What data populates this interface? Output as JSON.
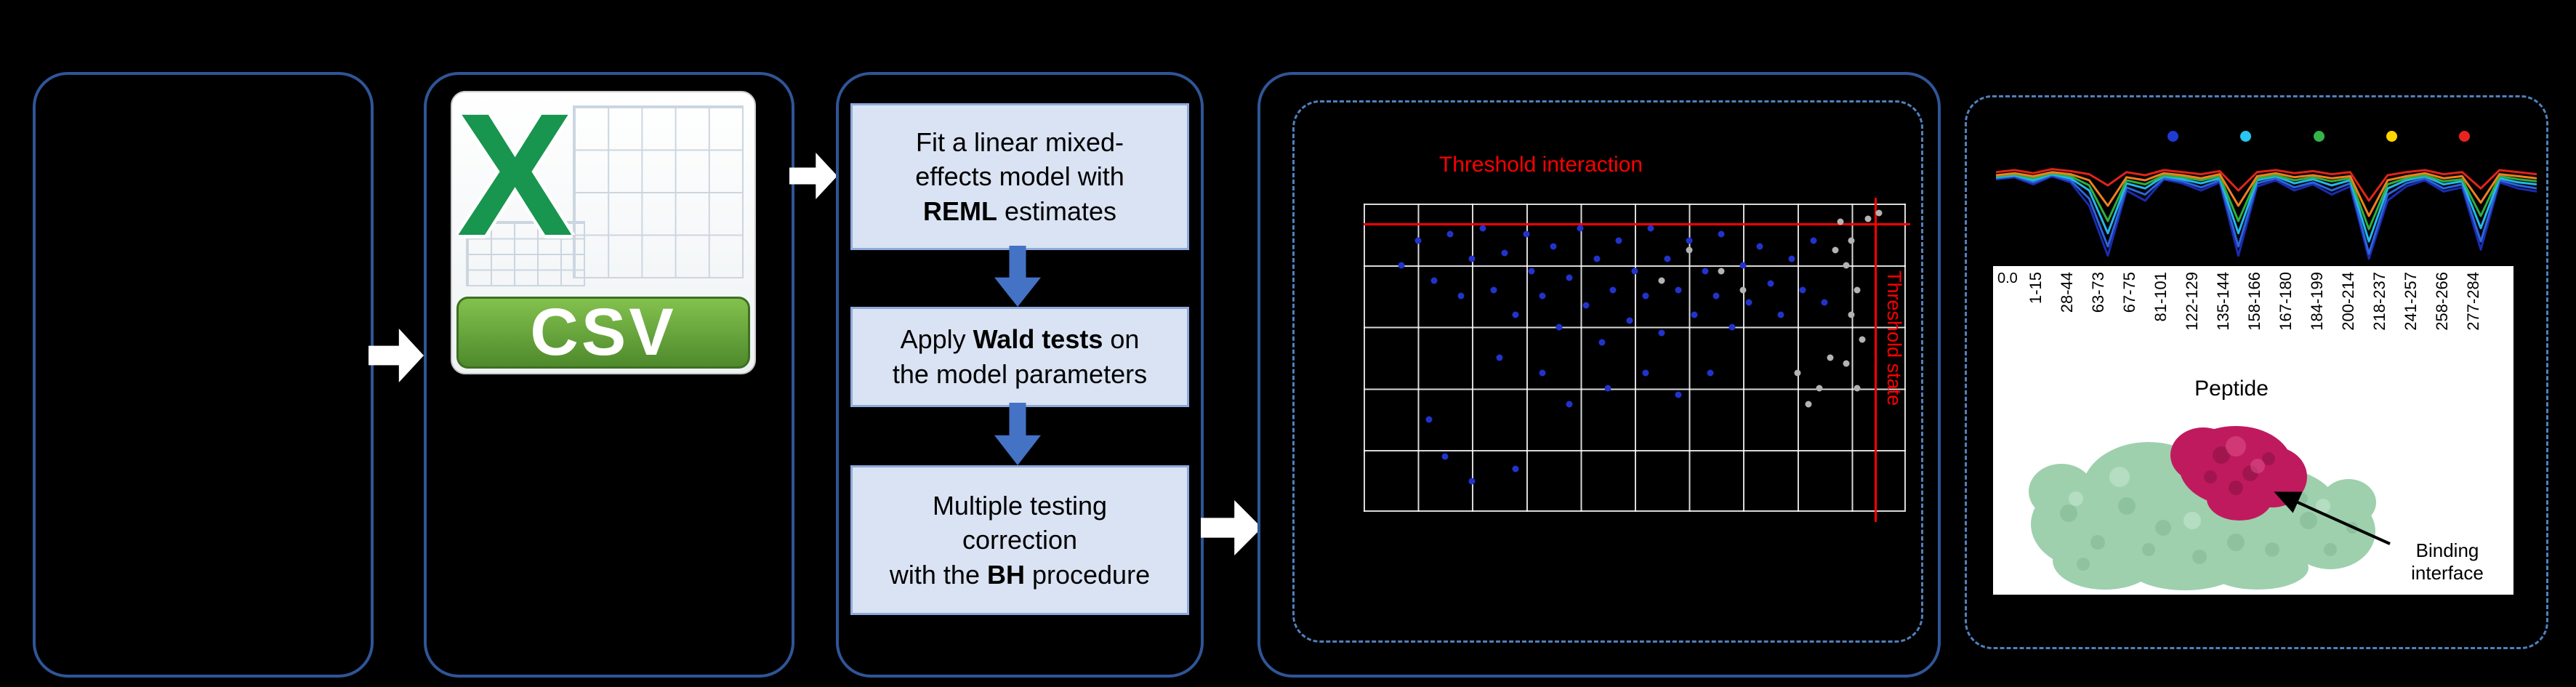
{
  "colors": {
    "panel_border": "#2f5597",
    "dashed_border": "#4f81bd",
    "flow_box_fill": "#dae3f3",
    "flow_box_border": "#8eaadb",
    "white_arrow": "#ffffff",
    "blue_arrow": "#4472c4",
    "threshold_red": "#ff0000",
    "csv_x_green": "#18954e",
    "csv_banner_green": "#5a9e2f"
  },
  "flow": {
    "csv": {
      "x": "X",
      "label": "CSV"
    },
    "steps": [
      {
        "lines": [
          [
            {
              "t": "Fit a linear mixed-"
            }
          ],
          [
            {
              "t": "effects model with"
            }
          ],
          [
            {
              "t": "REML",
              "b": true
            },
            {
              "t": " estimates"
            }
          ]
        ]
      },
      {
        "lines": [
          [
            {
              "t": "Apply "
            },
            {
              "t": "Wald tests",
              "b": true
            },
            {
              "t": " on"
            }
          ],
          [
            {
              "t": "the model parameters"
            }
          ]
        ]
      },
      {
        "lines": [
          [
            {
              "t": "Multiple testing"
            }
          ],
          [
            {
              "t": "correction"
            }
          ],
          [
            {
              "t": "with the "
            },
            {
              "t": "BH",
              "b": true
            },
            {
              "t": " procedure"
            }
          ]
        ]
      }
    ]
  },
  "scatter": {
    "threshold_labels": {
      "horizontal": "Threshold interaction",
      "vertical": "Threshold state"
    },
    "colors": {
      "significant": "#2233cc",
      "not_significant": "#b3b3b3",
      "threshold": "#ff0000"
    },
    "blue_points": [
      [
        0.07,
        0.2
      ],
      [
        0.1,
        0.12
      ],
      [
        0.13,
        0.25
      ],
      [
        0.16,
        0.1
      ],
      [
        0.18,
        0.3
      ],
      [
        0.2,
        0.18
      ],
      [
        0.22,
        0.08
      ],
      [
        0.24,
        0.28
      ],
      [
        0.26,
        0.16
      ],
      [
        0.28,
        0.36
      ],
      [
        0.3,
        0.1
      ],
      [
        0.31,
        0.22
      ],
      [
        0.33,
        0.3
      ],
      [
        0.35,
        0.14
      ],
      [
        0.36,
        0.4
      ],
      [
        0.38,
        0.24
      ],
      [
        0.4,
        0.08
      ],
      [
        0.41,
        0.33
      ],
      [
        0.43,
        0.18
      ],
      [
        0.44,
        0.45
      ],
      [
        0.46,
        0.28
      ],
      [
        0.47,
        0.12
      ],
      [
        0.49,
        0.38
      ],
      [
        0.5,
        0.22
      ],
      [
        0.52,
        0.3
      ],
      [
        0.53,
        0.08
      ],
      [
        0.55,
        0.42
      ],
      [
        0.56,
        0.18
      ],
      [
        0.58,
        0.28
      ],
      [
        0.6,
        0.12
      ],
      [
        0.61,
        0.36
      ],
      [
        0.63,
        0.22
      ],
      [
        0.65,
        0.3
      ],
      [
        0.66,
        0.1
      ],
      [
        0.68,
        0.4
      ],
      [
        0.7,
        0.2
      ],
      [
        0.71,
        0.32
      ],
      [
        0.73,
        0.14
      ],
      [
        0.75,
        0.26
      ],
      [
        0.77,
        0.36
      ],
      [
        0.79,
        0.18
      ],
      [
        0.81,
        0.28
      ],
      [
        0.83,
        0.12
      ],
      [
        0.85,
        0.32
      ],
      [
        0.33,
        0.55
      ],
      [
        0.45,
        0.6
      ],
      [
        0.52,
        0.55
      ],
      [
        0.38,
        0.65
      ],
      [
        0.25,
        0.5
      ],
      [
        0.15,
        0.82
      ],
      [
        0.2,
        0.9
      ],
      [
        0.28,
        0.86
      ],
      [
        0.12,
        0.7
      ],
      [
        0.58,
        0.62
      ],
      [
        0.64,
        0.55
      ]
    ],
    "gray_points": [
      [
        0.88,
        0.06
      ],
      [
        0.9,
        0.12
      ],
      [
        0.89,
        0.2
      ],
      [
        0.91,
        0.28
      ],
      [
        0.9,
        0.36
      ],
      [
        0.92,
        0.44
      ],
      [
        0.89,
        0.52
      ],
      [
        0.91,
        0.6
      ],
      [
        0.6,
        0.15
      ],
      [
        0.66,
        0.22
      ],
      [
        0.7,
        0.28
      ],
      [
        0.55,
        0.25
      ],
      [
        0.93,
        0.05
      ],
      [
        0.87,
        0.15
      ],
      [
        0.95,
        0.03
      ],
      [
        0.8,
        0.55
      ],
      [
        0.84,
        0.6
      ],
      [
        0.82,
        0.65
      ],
      [
        0.86,
        0.5
      ]
    ]
  },
  "uptake": {
    "y_tick": "0.0",
    "legend_colors": [
      "#1f3bd4",
      "#29c5f0",
      "#35b44a",
      "#ffd400",
      "#e8231f"
    ],
    "series": [
      {
        "color": "#1b2bb0",
        "values": [
          0.81,
          0.83,
          0.76,
          0.84,
          0.78,
          0.55,
          0.06,
          0.7,
          0.6,
          0.81,
          0.77,
          0.7,
          0.78,
          0.06,
          0.74,
          0.8,
          0.7,
          0.76,
          0.66,
          0.74,
          0.03,
          0.6,
          0.74,
          0.8,
          0.69,
          0.73,
          0.12,
          0.78,
          0.72,
          0.69
        ]
      },
      {
        "color": "#2c64d8",
        "values": [
          0.82,
          0.84,
          0.78,
          0.85,
          0.8,
          0.62,
          0.15,
          0.73,
          0.66,
          0.82,
          0.79,
          0.73,
          0.8,
          0.15,
          0.77,
          0.82,
          0.73,
          0.78,
          0.7,
          0.77,
          0.08,
          0.66,
          0.77,
          0.82,
          0.72,
          0.76,
          0.2,
          0.8,
          0.75,
          0.72
        ]
      },
      {
        "color": "#25b8e8",
        "values": [
          0.83,
          0.85,
          0.8,
          0.86,
          0.82,
          0.7,
          0.28,
          0.77,
          0.72,
          0.84,
          0.81,
          0.77,
          0.82,
          0.28,
          0.8,
          0.84,
          0.77,
          0.81,
          0.75,
          0.8,
          0.2,
          0.72,
          0.8,
          0.84,
          0.76,
          0.79,
          0.33,
          0.82,
          0.78,
          0.76
        ]
      },
      {
        "color": "#2fae3e",
        "values": [
          0.84,
          0.86,
          0.82,
          0.87,
          0.84,
          0.75,
          0.4,
          0.8,
          0.76,
          0.85,
          0.83,
          0.8,
          0.84,
          0.4,
          0.82,
          0.85,
          0.8,
          0.83,
          0.79,
          0.82,
          0.32,
          0.76,
          0.82,
          0.85,
          0.79,
          0.81,
          0.45,
          0.84,
          0.81,
          0.79
        ]
      },
      {
        "color": "#f07f1e",
        "values": [
          0.85,
          0.87,
          0.84,
          0.88,
          0.86,
          0.8,
          0.55,
          0.83,
          0.8,
          0.87,
          0.85,
          0.82,
          0.86,
          0.55,
          0.84,
          0.87,
          0.83,
          0.85,
          0.82,
          0.84,
          0.45,
          0.8,
          0.84,
          0.87,
          0.82,
          0.84,
          0.58,
          0.86,
          0.84,
          0.82
        ]
      },
      {
        "color": "#e02419",
        "values": [
          0.88,
          0.9,
          0.87,
          0.91,
          0.89,
          0.86,
          0.75,
          0.88,
          0.85,
          0.9,
          0.88,
          0.86,
          0.89,
          0.7,
          0.88,
          0.9,
          0.87,
          0.89,
          0.86,
          0.88,
          0.6,
          0.85,
          0.88,
          0.9,
          0.86,
          0.88,
          0.72,
          0.9,
          0.88,
          0.86
        ]
      }
    ]
  },
  "peptide_axis": {
    "labels": [
      "1-15",
      "28-44",
      "63-73",
      "67-75",
      "81-101",
      "122-129",
      "135-144",
      "158-166",
      "167-180",
      "184-199",
      "200-214",
      "218-237",
      "241-257",
      "258-266",
      "277-284"
    ],
    "title": "Peptide"
  },
  "protein": {
    "annotation": "Binding interface"
  }
}
